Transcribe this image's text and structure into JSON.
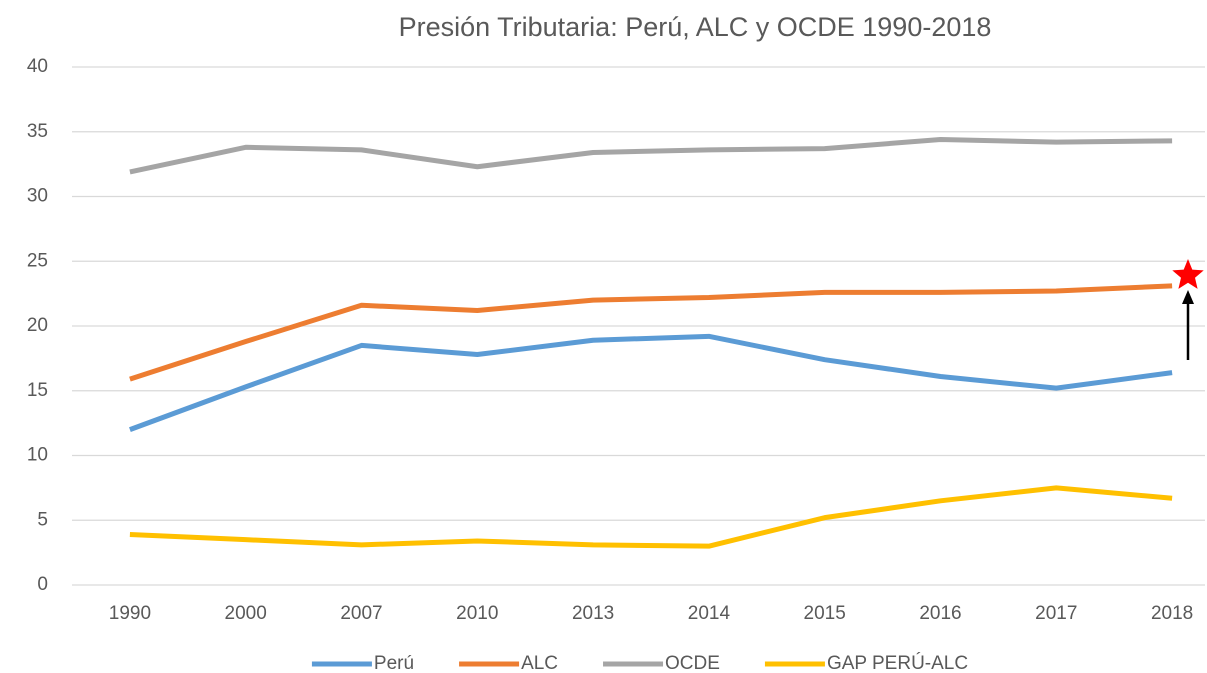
{
  "chart_data": {
    "type": "line",
    "title": "Presión Tributaria: Perú, ALC y OCDE 1990-2018",
    "categories": [
      "1990",
      "2000",
      "2007",
      "2010",
      "2013",
      "2014",
      "2015",
      "2016",
      "2017",
      "2018"
    ],
    "series": [
      {
        "name": "Perú",
        "color": "#5b9bd5",
        "values": [
          12.0,
          15.3,
          18.5,
          17.8,
          18.9,
          19.2,
          17.4,
          16.1,
          15.2,
          16.4
        ]
      },
      {
        "name": "ALC",
        "color": "#ed7d31",
        "values": [
          15.9,
          18.8,
          21.6,
          21.2,
          22.0,
          22.2,
          22.6,
          22.6,
          22.7,
          23.1
        ]
      },
      {
        "name": "OCDE",
        "color": "#a5a5a5",
        "values": [
          31.9,
          33.8,
          33.6,
          32.3,
          33.4,
          33.6,
          33.7,
          34.4,
          34.2,
          34.3
        ]
      },
      {
        "name": "GAP PERÚ-ALC",
        "color": "#ffc000",
        "values": [
          3.9,
          3.5,
          3.1,
          3.4,
          3.1,
          3.0,
          5.2,
          6.5,
          7.5,
          6.7
        ]
      }
    ],
    "ylim": [
      0,
      40
    ],
    "yticks": [
      0,
      5,
      10,
      15,
      20,
      25,
      30,
      35,
      40
    ],
    "grid": true,
    "legend": "bottom"
  }
}
